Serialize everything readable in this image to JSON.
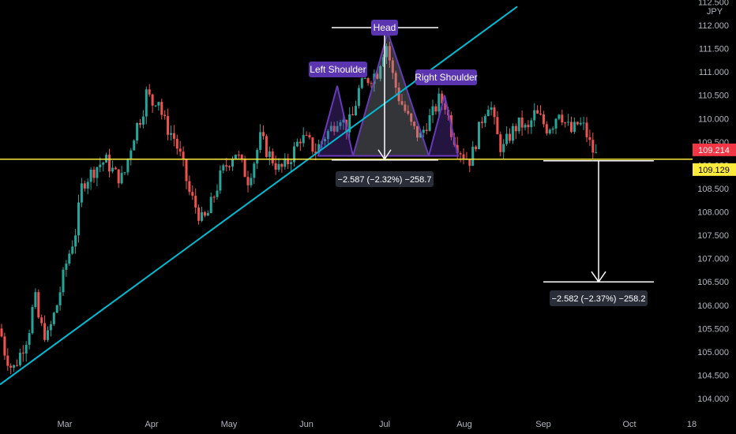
{
  "symbol": {
    "currency": "JPY"
  },
  "price_tags": {
    "last": {
      "value": "109.214",
      "color": "#f23645"
    },
    "line": {
      "value": "109.129",
      "color": "#ffeb3b"
    }
  },
  "annotations": {
    "head": "Head",
    "left_shoulder": "Left Shoulder",
    "right_shoulder": "Right Shoulder",
    "measure_pattern": "−2.587 (−2.32%) −258.7",
    "measure_target": "−2.582 (−2.37%) −258.2"
  },
  "colors": {
    "up": "#26a69a",
    "down": "#ef5350",
    "trendline": "#00bcd4",
    "neckline": "#ffeb3b",
    "pattern": "#673ab7",
    "label_bg": "#5b34b0",
    "measure_bg": "#2a2e39"
  },
  "chart_data": {
    "type": "candlestick",
    "y_unit": "JPY",
    "ylim": [
      103.8,
      112.55
    ],
    "y_ticks": [
      "104.000",
      "104.500",
      "105.000",
      "105.500",
      "106.000",
      "106.500",
      "107.000",
      "107.500",
      "108.000",
      "108.500",
      "109.000",
      "109.500",
      "110.000",
      "110.500",
      "111.000",
      "111.500",
      "112.000",
      "112.500"
    ],
    "x_ticks": [
      "Mar",
      "Apr",
      "May",
      "Jun",
      "Jul",
      "Aug",
      "Sep",
      "Oct",
      "18"
    ],
    "grid": false,
    "price_path": [
      [
        0,
        105.5
      ],
      [
        6,
        105.0
      ],
      [
        16,
        104.6
      ],
      [
        24,
        104.9
      ],
      [
        36,
        105.4
      ],
      [
        44,
        106.2
      ],
      [
        50,
        105.6
      ],
      [
        60,
        105.3
      ],
      [
        72,
        106.0
      ],
      [
        84,
        106.9
      ],
      [
        96,
        107.6
      ],
      [
        104,
        108.6
      ],
      [
        114,
        108.8
      ],
      [
        124,
        109.0
      ],
      [
        134,
        109.1
      ],
      [
        146,
        108.8
      ],
      [
        156,
        108.7
      ],
      [
        164,
        109.3
      ],
      [
        172,
        109.8
      ],
      [
        180,
        110.1
      ],
      [
        186,
        110.6
      ],
      [
        192,
        110.3
      ],
      [
        200,
        110.5
      ],
      [
        206,
        110.0
      ],
      [
        212,
        109.8
      ],
      [
        220,
        109.6
      ],
      [
        230,
        109.1
      ],
      [
        240,
        108.4
      ],
      [
        248,
        108.1
      ],
      [
        256,
        107.8
      ],
      [
        262,
        107.9
      ],
      [
        270,
        108.3
      ],
      [
        280,
        108.8
      ],
      [
        290,
        109.1
      ],
      [
        298,
        109.3
      ],
      [
        306,
        109.0
      ],
      [
        314,
        108.7
      ],
      [
        322,
        109.1
      ],
      [
        330,
        109.6
      ],
      [
        338,
        109.3
      ],
      [
        346,
        109.1
      ],
      [
        354,
        108.9
      ],
      [
        362,
        109.0
      ],
      [
        372,
        109.3
      ],
      [
        380,
        109.6
      ],
      [
        390,
        109.5
      ],
      [
        400,
        109.3
      ],
      [
        410,
        109.6
      ],
      [
        420,
        109.8
      ],
      [
        430,
        110.1
      ],
      [
        438,
        109.8
      ],
      [
        446,
        110.0
      ],
      [
        454,
        110.6
      ],
      [
        462,
        110.8
      ],
      [
        470,
        110.9
      ],
      [
        478,
        111.0
      ],
      [
        484,
        111.4
      ],
      [
        490,
        111.6
      ],
      [
        496,
        111.0
      ],
      [
        504,
        110.5
      ],
      [
        512,
        110.2
      ],
      [
        522,
        109.8
      ],
      [
        532,
        109.6
      ],
      [
        540,
        109.9
      ],
      [
        548,
        110.1
      ],
      [
        556,
        110.4
      ],
      [
        564,
        110.3
      ],
      [
        572,
        109.7
      ],
      [
        580,
        109.4
      ],
      [
        588,
        109.2
      ],
      [
        596,
        109.1
      ],
      [
        604,
        109.6
      ],
      [
        612,
        110.1
      ],
      [
        620,
        110.4
      ],
      [
        628,
        109.7
      ],
      [
        636,
        109.3
      ],
      [
        644,
        109.6
      ],
      [
        652,
        109.8
      ],
      [
        660,
        109.9
      ],
      [
        668,
        109.7
      ],
      [
        676,
        110.1
      ],
      [
        684,
        110.0
      ],
      [
        692,
        109.8
      ],
      [
        700,
        109.9
      ],
      [
        708,
        110.2
      ],
      [
        716,
        109.9
      ],
      [
        724,
        109.7
      ],
      [
        732,
        109.9
      ],
      [
        740,
        109.8
      ],
      [
        748,
        109.4
      ],
      [
        754,
        109.2
      ],
      [
        760,
        109.21
      ]
    ],
    "trendline": [
      [
        104.0,
        104.3
      ],
      [
        112.4,
        112.4
      ]
    ],
    "neckline_price": 109.129,
    "head_top_price": 111.95,
    "target_price": 106.5,
    "pattern_points": [
      [
        403,
        109.2
      ],
      [
        427,
        110.7
      ],
      [
        447,
        109.2
      ],
      [
        491,
        111.85
      ],
      [
        543,
        109.2
      ],
      [
        563,
        110.5
      ],
      [
        580,
        109.2
      ]
    ]
  }
}
